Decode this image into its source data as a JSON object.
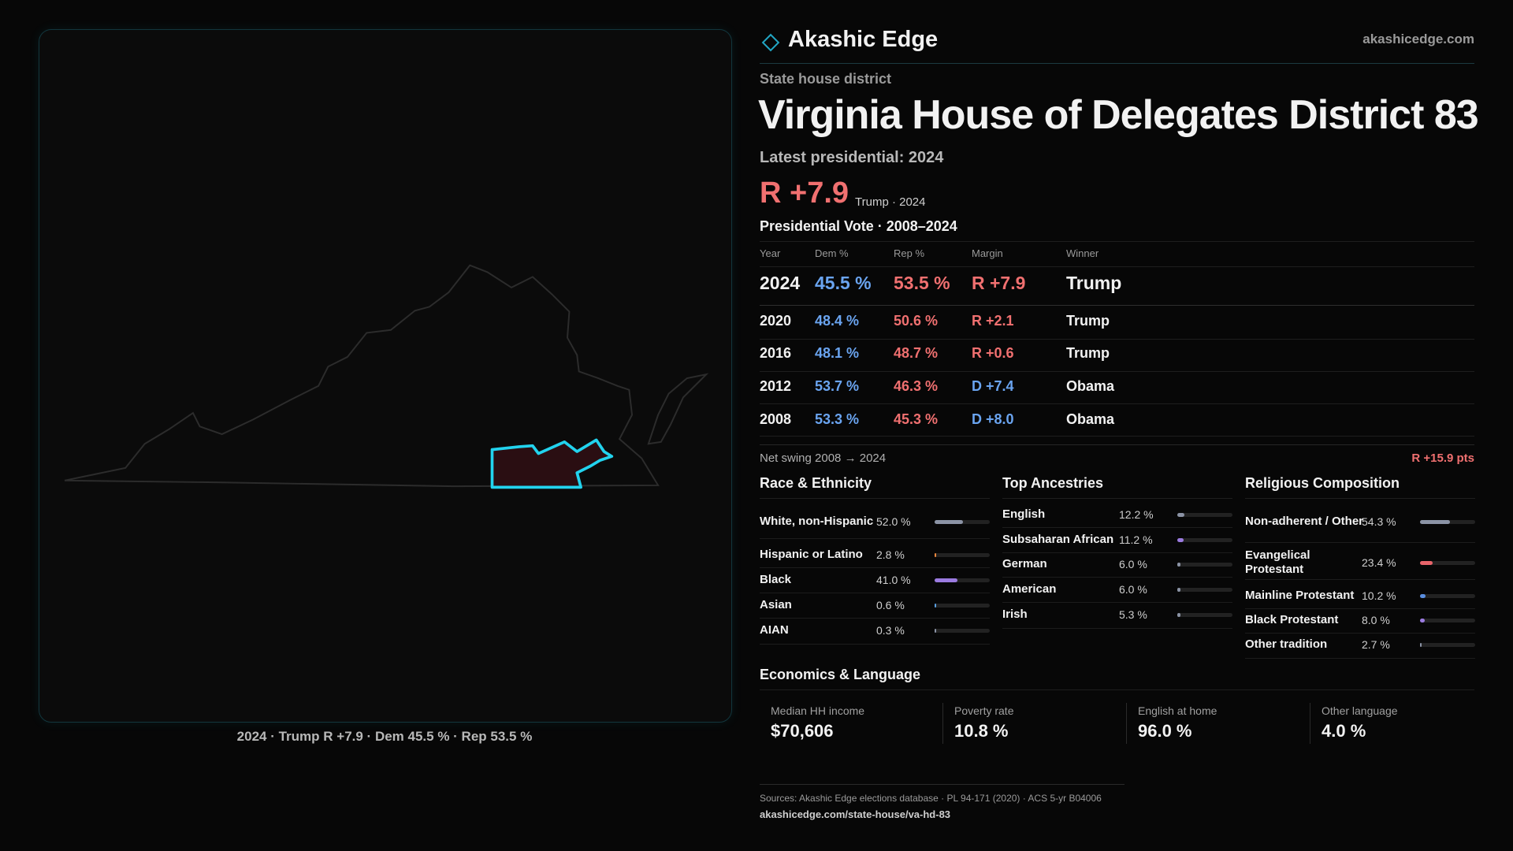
{
  "header": {
    "brand": "Akashic Edge",
    "site": "akashicedge.com"
  },
  "district": {
    "kind": "State house district",
    "title": "Virginia House of Delegates District 83",
    "latest_label": "Latest presidential: 2024",
    "latest_margin": "R +7.9",
    "latest_note": "Trump · 2024"
  },
  "map": {
    "caption": "2024 · Trump R +7.9 · Dem 45.5 % · Rep 53.5 %"
  },
  "presidential": {
    "title": "Presidential Vote · 2008–2024",
    "columns": [
      "Year",
      "Dem %",
      "Rep %",
      "Margin",
      "Winner"
    ],
    "rows": [
      [
        "2024",
        "45.5 %",
        "53.5 %",
        "R +7.9",
        "Trump"
      ],
      [
        "2020",
        "48.4 %",
        "50.6 %",
        "R +2.1",
        "Trump"
      ],
      [
        "2016",
        "48.1 %",
        "48.7 %",
        "R +0.6",
        "Trump"
      ],
      [
        "2012",
        "53.7 %",
        "46.3 %",
        "D +7.4",
        "Obama"
      ],
      [
        "2008",
        "53.3 %",
        "45.3 %",
        "D +8.0",
        "Obama"
      ]
    ],
    "swing_label": "Net swing 2008 → 2024",
    "swing_value": "R +15.9 pts"
  },
  "race": {
    "title": "Race & Ethnicity",
    "rows": [
      {
        "label": "White, non-Hispanic",
        "value_label": "52.0 %",
        "value": 52.0,
        "color": "#8b93a5"
      },
      {
        "label": "Hispanic or Latino",
        "value_label": "2.8 %",
        "value": 2.8,
        "color": "#f0883e"
      },
      {
        "label": "Black",
        "value_label": "41.0 %",
        "value": 41.0,
        "color": "#9b7be0"
      },
      {
        "label": "Asian",
        "value_label": "0.6 %",
        "value": 0.6,
        "color": "#5aa0e0"
      },
      {
        "label": "AIAN",
        "value_label": "0.3 %",
        "value": 0.3,
        "color": "#8b93a5"
      }
    ]
  },
  "ancestry": {
    "title": "Top Ancestries",
    "rows": [
      {
        "label": "English",
        "value_label": "12.2 %",
        "value": 12.2,
        "color": "#8b93a5"
      },
      {
        "label": "Subsaharan African",
        "value_label": "11.2 %",
        "value": 11.2,
        "color": "#9b7be0"
      },
      {
        "label": "German",
        "value_label": "6.0 %",
        "value": 6.0,
        "color": "#8b93a5"
      },
      {
        "label": "American",
        "value_label": "6.0 %",
        "value": 6.0,
        "color": "#8b93a5"
      },
      {
        "label": "Irish",
        "value_label": "5.3 %",
        "value": 5.3,
        "color": "#8b93a5"
      }
    ]
  },
  "religion": {
    "title": "Religious Composition",
    "rows": [
      {
        "label": "Non-adherent / Other",
        "value_label": "54.3 %",
        "value": 54.3,
        "color": "#8b93a5"
      },
      {
        "label": "Evangelical Protestant",
        "value_label": "23.4 %",
        "value": 23.4,
        "color": "#e8646a"
      },
      {
        "label": "Mainline Protestant",
        "value_label": "10.2 %",
        "value": 10.2,
        "color": "#5a8ee0"
      },
      {
        "label": "Black Protestant",
        "value_label": "8.0 %",
        "value": 8.0,
        "color": "#9b7be0"
      },
      {
        "label": "Other tradition",
        "value_label": "2.7 %",
        "value": 2.7,
        "color": "#8b93a5"
      }
    ]
  },
  "economics": {
    "title": "Economics & Language",
    "cards": [
      {
        "label": "Median HH income",
        "value": "$70,606"
      },
      {
        "label": "Poverty rate",
        "value": "10.8 %"
      },
      {
        "label": "English at home",
        "value": "96.0 %"
      },
      {
        "label": "Other language",
        "value": "4.0 %"
      }
    ]
  },
  "footer": {
    "sources": "Sources: Akashic Edge elections database · PL 94-171 (2020) · ACS 5-yr B04006",
    "url": "akashicedge.com/state-house/va-hd-83"
  }
}
